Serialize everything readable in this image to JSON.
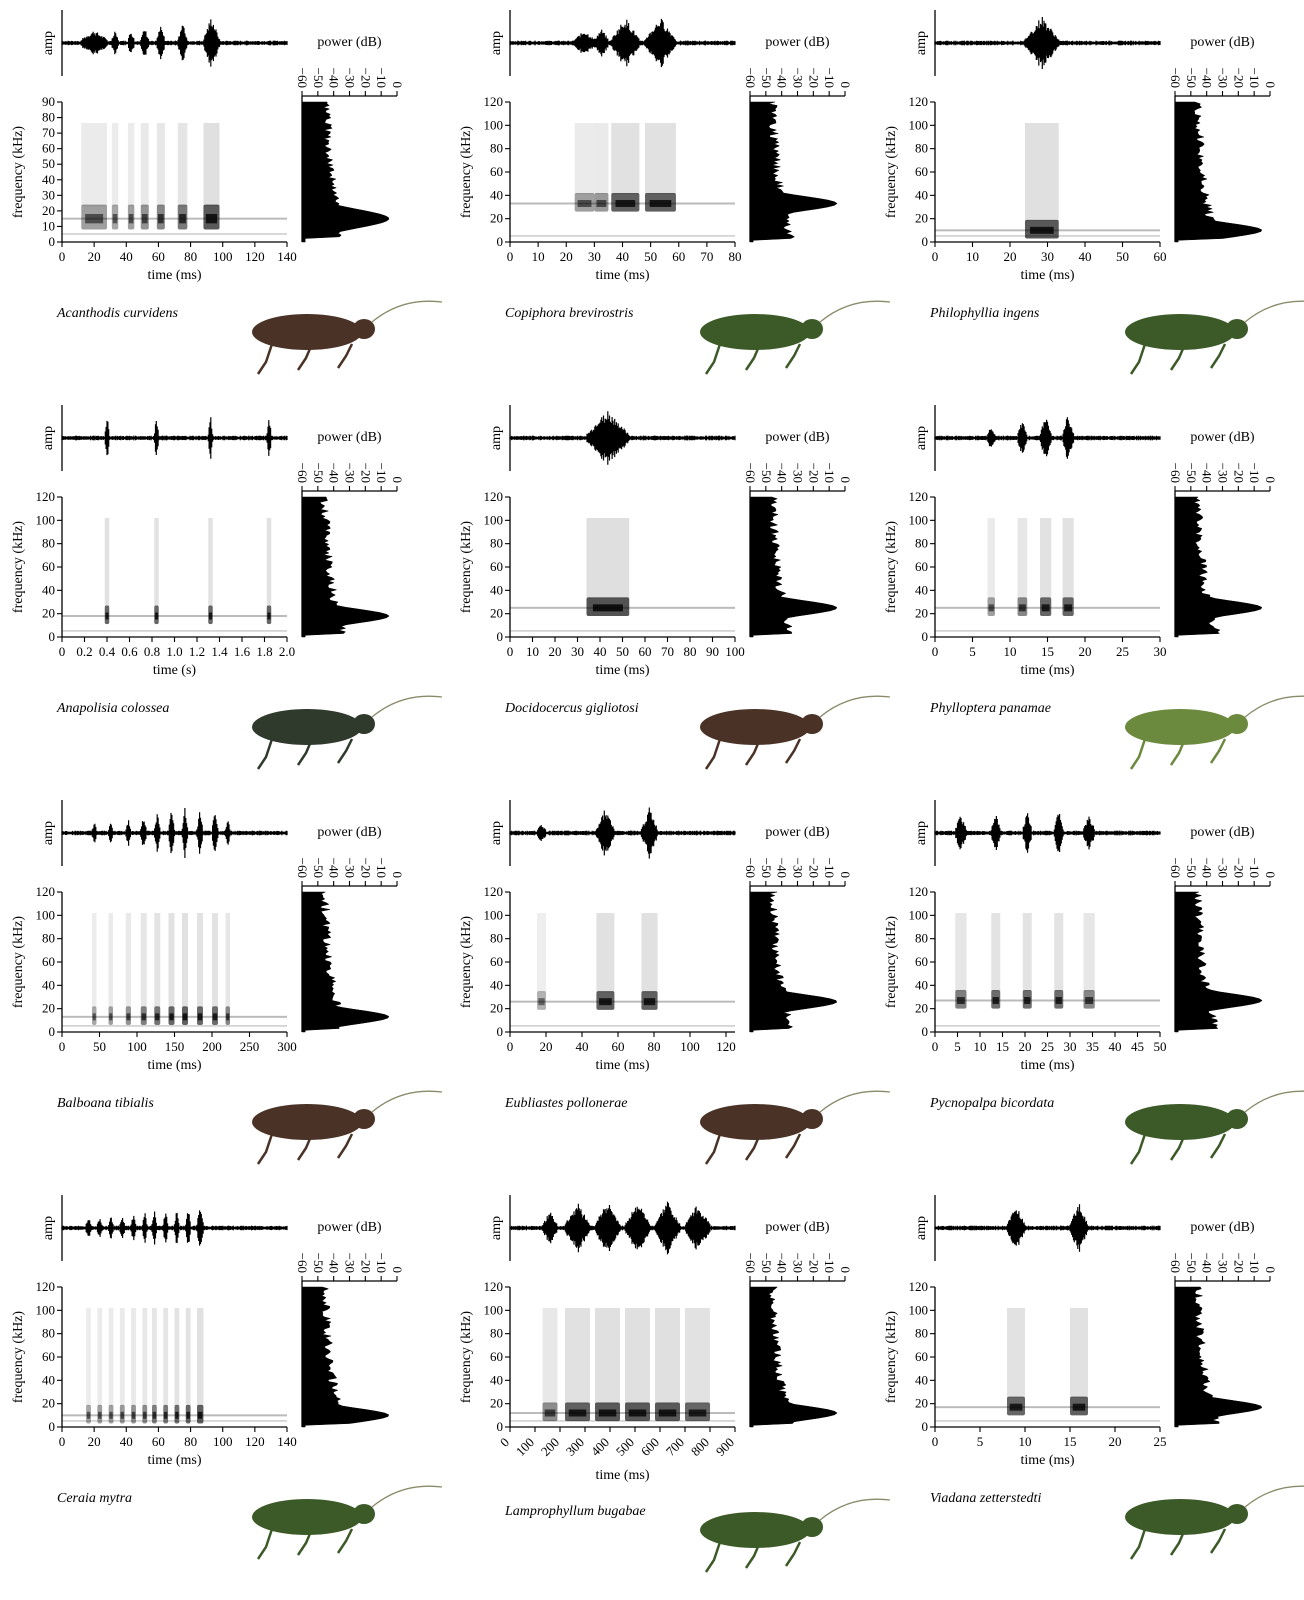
{
  "figure": {
    "amp_label": "amp",
    "freq_label": "frequency (kHz)",
    "power_label": "power (dB)",
    "power_ticks": [
      "0",
      "−10",
      "−20",
      "−30",
      "−40",
      "−50",
      "−60"
    ]
  },
  "colors": {
    "ink": "#000000",
    "spectrogram": "#1a1a1a",
    "insect_green": "#3f5a2a",
    "insect_brown": "#4a3326"
  },
  "chart_data": [
    {
      "type": "heatmap",
      "species": "Acanthodis curvidens",
      "xlabel": "time (ms)",
      "ylabel": "frequency (kHz)",
      "x_ticks": [
        "0",
        "20",
        "40",
        "60",
        "80",
        "100",
        "120",
        "140"
      ],
      "y_ticks": [
        "0",
        "10",
        "20",
        "30",
        "40",
        "50",
        "60",
        "70",
        "80",
        "90"
      ],
      "xlim": [
        0,
        140
      ],
      "ylim": [
        0,
        90
      ],
      "peak_khz": 15,
      "pulses": [
        [
          12,
          28,
          0.35
        ],
        [
          31,
          35,
          0.3
        ],
        [
          41,
          45,
          0.35
        ],
        [
          49,
          54,
          0.45
        ],
        [
          59,
          64,
          0.55
        ],
        [
          72,
          78,
          0.65
        ],
        [
          88,
          98,
          0.9
        ]
      ],
      "insect": "brown"
    },
    {
      "type": "heatmap",
      "species": "Copiphora brevirostris",
      "xlabel": "time (ms)",
      "ylabel": "frequency (kHz)",
      "x_ticks": [
        "0",
        "10",
        "20",
        "30",
        "40",
        "50",
        "60",
        "70",
        "80"
      ],
      "y_ticks": [
        "0",
        "20",
        "40",
        "60",
        "80",
        "100",
        "120"
      ],
      "xlim": [
        0,
        80
      ],
      "ylim": [
        0,
        120
      ],
      "peak_khz": 33,
      "pulses": [
        [
          23,
          30,
          0.35
        ],
        [
          30,
          35,
          0.4
        ],
        [
          36,
          46,
          0.85
        ],
        [
          48,
          59,
          0.85
        ]
      ],
      "insect": "green"
    },
    {
      "type": "heatmap",
      "species": "Philophyllia ingens",
      "xlabel": "time (ms)",
      "ylabel": "frequency (kHz)",
      "x_ticks": [
        "0",
        "10",
        "20",
        "30",
        "40",
        "50",
        "60"
      ],
      "y_ticks": [
        "0",
        "20",
        "40",
        "60",
        "80",
        "100",
        "120"
      ],
      "xlim": [
        0,
        60
      ],
      "ylim": [
        0,
        120
      ],
      "peak_khz": 10,
      "pulses": [
        [
          24,
          33,
          0.9
        ]
      ],
      "insect": "green"
    },
    {
      "type": "heatmap",
      "species": "Anapolisia colossea",
      "xlabel": "time (s)",
      "ylabel": "frequency (kHz)",
      "x_ticks": [
        "0",
        "0.2",
        "0.4",
        "0.6",
        "0.8",
        "1.0",
        "1.2",
        "1.4",
        "1.6",
        "1.8",
        "2.0"
      ],
      "y_ticks": [
        "0",
        "20",
        "40",
        "60",
        "80",
        "100",
        "120"
      ],
      "xlim": [
        0,
        2.0
      ],
      "ylim": [
        0,
        120
      ],
      "peak_khz": 18,
      "pulses": [
        [
          0.38,
          0.42,
          0.8
        ],
        [
          0.82,
          0.86,
          0.8
        ],
        [
          1.3,
          1.34,
          0.8
        ],
        [
          1.82,
          1.86,
          0.8
        ]
      ],
      "insect": "dark"
    },
    {
      "type": "heatmap",
      "species": "Docidocercus gigliotosi",
      "xlabel": "time (ms)",
      "ylabel": "frequency (kHz)",
      "x_ticks": [
        "0",
        "10",
        "20",
        "30",
        "40",
        "50",
        "60",
        "70",
        "80",
        "90",
        "100"
      ],
      "y_ticks": [
        "0",
        "20",
        "40",
        "60",
        "80",
        "100",
        "120"
      ],
      "xlim": [
        0,
        100
      ],
      "ylim": [
        0,
        120
      ],
      "peak_khz": 25,
      "pulses": [
        [
          34,
          53,
          0.95
        ]
      ],
      "insect": "brown"
    },
    {
      "type": "heatmap",
      "species": "Phylloptera panamae",
      "xlabel": "time (ms)",
      "ylabel": "frequency (kHz)",
      "x_ticks": [
        "0",
        "5",
        "10",
        "15",
        "20",
        "25",
        "30"
      ],
      "y_ticks": [
        "0",
        "20",
        "40",
        "60",
        "80",
        "100",
        "120"
      ],
      "xlim": [
        0,
        30
      ],
      "ylim": [
        0,
        120
      ],
      "peak_khz": 25,
      "pulses": [
        [
          7,
          8,
          0.35
        ],
        [
          11,
          12.3,
          0.55
        ],
        [
          14,
          15.5,
          0.8
        ],
        [
          17,
          18.5,
          0.8
        ]
      ],
      "insect": "light"
    },
    {
      "type": "heatmap",
      "species": "Balboana tibialis",
      "xlabel": "time (ms)",
      "ylabel": "frequency (kHz)",
      "x_ticks": [
        "0",
        "50",
        "100",
        "150",
        "200",
        "250",
        "300"
      ],
      "y_ticks": [
        "0",
        "20",
        "40",
        "60",
        "80",
        "100",
        "120"
      ],
      "xlim": [
        0,
        300
      ],
      "ylim": [
        0,
        120
      ],
      "peak_khz": 13,
      "pulses": [
        [
          40,
          46,
          0.3
        ],
        [
          62,
          68,
          0.35
        ],
        [
          85,
          92,
          0.45
        ],
        [
          105,
          113,
          0.6
        ],
        [
          123,
          131,
          0.7
        ],
        [
          142,
          150,
          0.8
        ],
        [
          160,
          168,
          0.85
        ],
        [
          180,
          188,
          0.8
        ],
        [
          200,
          208,
          0.75
        ],
        [
          218,
          224,
          0.55
        ]
      ],
      "insect": "brown"
    },
    {
      "type": "heatmap",
      "species": "Eubliastes pollonerae",
      "xlabel": "time (ms)",
      "ylabel": "frequency (kHz)",
      "x_ticks": [
        "0",
        "20",
        "40",
        "60",
        "80",
        "100",
        "120"
      ],
      "y_ticks": [
        "0",
        "20",
        "40",
        "60",
        "80",
        "100",
        "120"
      ],
      "xlim": [
        0,
        125
      ],
      "ylim": [
        0,
        120
      ],
      "peak_khz": 26,
      "pulses": [
        [
          15,
          20,
          0.2
        ],
        [
          48,
          58,
          0.85
        ],
        [
          73,
          82,
          0.85
        ]
      ],
      "insect": "brown"
    },
    {
      "type": "heatmap",
      "species": "Pycnopalpa bicordata",
      "xlabel": "time (ms)",
      "ylabel": "frequency (kHz)",
      "x_ticks": [
        "0",
        "5",
        "10",
        "15",
        "20",
        "25",
        "30",
        "35",
        "40",
        "45",
        "50"
      ],
      "y_ticks": [
        "0",
        "20",
        "40",
        "60",
        "80",
        "100",
        "120"
      ],
      "xlim": [
        0,
        50
      ],
      "ylim": [
        0,
        120
      ],
      "peak_khz": 27,
      "pulses": [
        [
          4.5,
          7,
          0.6
        ],
        [
          12.5,
          14.5,
          0.75
        ],
        [
          19.5,
          21.5,
          0.75
        ],
        [
          26.5,
          28.5,
          0.75
        ],
        [
          33,
          35.5,
          0.55
        ]
      ],
      "insect": "green"
    },
    {
      "type": "heatmap",
      "species": "Ceraia mytra",
      "xlabel": "time (ms)",
      "ylabel": "frequency (kHz)",
      "x_ticks": [
        "0",
        "20",
        "40",
        "60",
        "80",
        "100",
        "120",
        "140"
      ],
      "y_ticks": [
        "0",
        "20",
        "40",
        "60",
        "80",
        "100",
        "120"
      ],
      "xlim": [
        0,
        140
      ],
      "ylim": [
        0,
        120
      ],
      "peak_khz": 10,
      "pulses": [
        [
          15,
          18,
          0.3
        ],
        [
          22,
          25,
          0.35
        ],
        [
          29,
          32,
          0.35
        ],
        [
          36,
          39,
          0.4
        ],
        [
          43,
          46,
          0.45
        ],
        [
          50,
          53,
          0.5
        ],
        [
          56,
          59,
          0.6
        ],
        [
          63,
          66,
          0.65
        ],
        [
          70,
          73,
          0.75
        ],
        [
          77,
          80,
          0.8
        ],
        [
          84,
          88,
          0.85
        ]
      ],
      "insect": "green"
    },
    {
      "type": "heatmap",
      "species": "Lamprophyllum bugabae",
      "xlabel": "time (ms)",
      "ylabel": "frequency (kHz)",
      "x_ticks": [
        "0",
        "100",
        "200",
        "300",
        "400",
        "500",
        "600",
        "700",
        "800",
        "900"
      ],
      "y_ticks": [
        "0",
        "20",
        "40",
        "60",
        "80",
        "100",
        "120"
      ],
      "xlim": [
        0,
        900
      ],
      "ylim": [
        0,
        120
      ],
      "peak_khz": 12,
      "pulses": [
        [
          130,
          190,
          0.5
        ],
        [
          220,
          320,
          0.85
        ],
        [
          340,
          440,
          0.9
        ],
        [
          460,
          560,
          0.9
        ],
        [
          580,
          680,
          0.9
        ],
        [
          700,
          800,
          0.8
        ]
      ],
      "insect": "green"
    },
    {
      "type": "heatmap",
      "species": "Viadana zetterstedti",
      "xlabel": "time (ms)",
      "ylabel": "frequency (kHz)",
      "x_ticks": [
        "0",
        "5",
        "10",
        "15",
        "20",
        "25"
      ],
      "y_ticks": [
        "0",
        "20",
        "40",
        "60",
        "80",
        "100",
        "120"
      ],
      "xlim": [
        0,
        25
      ],
      "ylim": [
        0,
        120
      ],
      "peak_khz": 17,
      "pulses": [
        [
          8,
          10,
          0.8
        ],
        [
          15,
          17,
          0.85
        ]
      ],
      "insect": "green"
    }
  ]
}
